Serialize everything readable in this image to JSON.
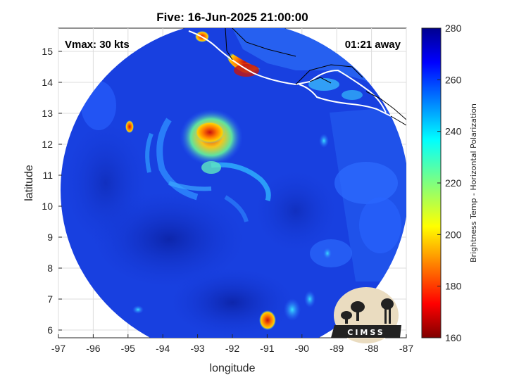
{
  "title": "Five: 16-Jun-2025 21:00:00",
  "annotations": {
    "vmax": "Vmax: 30 kts",
    "time_away": "01:21 away"
  },
  "axes": {
    "xlabel": "longitude",
    "ylabel": "latitude",
    "xlim": [
      -97,
      -87
    ],
    "ylim": [
      5.75,
      15.75
    ],
    "xticks": [
      "-97",
      "-96",
      "-95",
      "-94",
      "-93",
      "-92",
      "-91",
      "-90",
      "-89",
      "-88",
      "-87"
    ],
    "yticks": [
      "6",
      "7",
      "8",
      "9",
      "10",
      "11",
      "12",
      "13",
      "14",
      "15"
    ],
    "grid": true
  },
  "colorbar": {
    "label": "Brightness Temp - Horizontal Polarization",
    "range": [
      160,
      280
    ],
    "ticks": [
      "160",
      "180",
      "200",
      "220",
      "240",
      "260",
      "280"
    ],
    "colormap": "jet"
  },
  "logo": {
    "text": "CIMSS"
  },
  "colors": {
    "background_field": "#1538d8",
    "ocean_field_dark": "#0a26b8",
    "land_warm": "#d42a10",
    "coastline": "#ffffff",
    "grid": "#d8d8d8"
  }
}
